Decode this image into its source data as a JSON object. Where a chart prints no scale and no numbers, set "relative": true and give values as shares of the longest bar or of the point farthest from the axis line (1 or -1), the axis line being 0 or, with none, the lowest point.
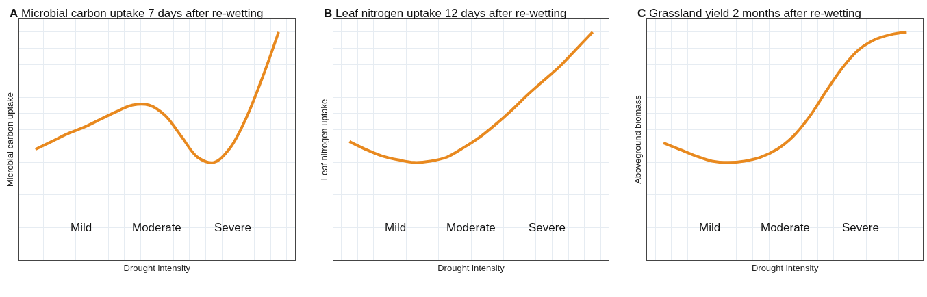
{
  "chart_data": [
    {
      "type": "line",
      "title": "A Microbial carbon uptake 7 days after re-wetting",
      "xlabel": "Drought intensity",
      "ylabel": "Microbial carbon uptake",
      "relative": true,
      "grid": true,
      "tick_labels": false,
      "marker": "none",
      "line_style": "solid",
      "annotations": [
        "Mild",
        "Moderate",
        "Severe"
      ],
      "categories": [
        null,
        null,
        null,
        null,
        null,
        null,
        null,
        null,
        null,
        null,
        null,
        null,
        null,
        null,
        null,
        null
      ],
      "series": [
        {
          "color": "#e8891f",
          "values": [
            0.1,
            0.16,
            0.22,
            0.27,
            0.33,
            0.39,
            0.44,
            0.44,
            0.36,
            0.2,
            0.04,
            0,
            0.11,
            0.34,
            0.65,
            1.0
          ]
        }
      ]
    },
    {
      "type": "line",
      "title": "B Leaf nitrogen uptake 12 days after re-wetting",
      "xlabel": "Drought intensity",
      "ylabel": "Leaf nitrogen uptake",
      "relative": true,
      "grid": true,
      "tick_labels": false,
      "marker": "none",
      "line_style": "solid",
      "annotations": [
        "Mild",
        "Moderate",
        "Severe"
      ],
      "categories": [
        null,
        null,
        null,
        null,
        null,
        null,
        null,
        null,
        null,
        null,
        null,
        null,
        null,
        null,
        null,
        null
      ],
      "series": [
        {
          "color": "#e8891f",
          "values": [
            0.16,
            0.1,
            0.05,
            0.02,
            0,
            0.01,
            0.04,
            0.11,
            0.19,
            0.29,
            0.4,
            0.52,
            0.63,
            0.74,
            0.87,
            1.0
          ]
        }
      ]
    },
    {
      "type": "line",
      "title": "C Grassland yield 2 months after re-wetting",
      "xlabel": "Drought intensity",
      "ylabel": "Aboveground biomass",
      "relative": true,
      "grid": true,
      "tick_labels": false,
      "marker": "none",
      "line_style": "solid",
      "annotations": [
        "Mild",
        "Moderate",
        "Severe"
      ],
      "categories": [
        null,
        null,
        null,
        null,
        null,
        null,
        null,
        null,
        null,
        null,
        null,
        null,
        null,
        null,
        null,
        null
      ],
      "series": [
        {
          "color": "#e8891f",
          "values": [
            0.15,
            0.1,
            0.05,
            0.01,
            0,
            0.01,
            0.04,
            0.1,
            0.2,
            0.35,
            0.54,
            0.72,
            0.86,
            0.94,
            0.98,
            1.0
          ]
        }
      ]
    }
  ]
}
